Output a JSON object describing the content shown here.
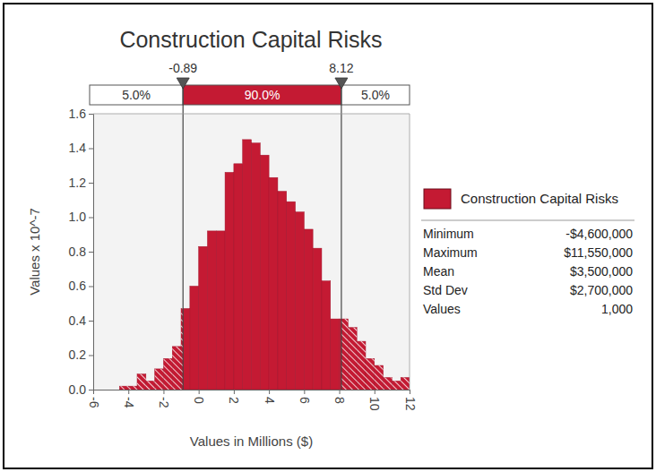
{
  "chart_data": {
    "type": "histogram",
    "title": "Construction Capital Risks",
    "name": "Construction Capital Risks",
    "color": "#c41a33",
    "x_label": "Values in Millions ($)",
    "y_label": "Values x 10^-7",
    "bins": [
      -4.5,
      -4,
      -3.5,
      -3,
      -2.5,
      -2,
      -1.5,
      -1,
      -0.5,
      0,
      0.5,
      1,
      1.5,
      2,
      2.5,
      3,
      3.5,
      4,
      4.5,
      5,
      5.5,
      6,
      6.5,
      7,
      7.5,
      8,
      8.5,
      9,
      9.5,
      10,
      10.5,
      11,
      11.5,
      12
    ],
    "counts": [
      0.02,
      0.02,
      0.09,
      0.05,
      0.12,
      0.18,
      0.25,
      0.47,
      0.6,
      0.83,
      0.92,
      0.92,
      1.26,
      1.31,
      1.45,
      1.43,
      1.36,
      1.23,
      1.15,
      1.09,
      1.03,
      0.93,
      0.82,
      0.63,
      0.41,
      0.41,
      0.36,
      0.28,
      0.18,
      0.14,
      0.07,
      0.05,
      0.07
    ],
    "xlim": [
      -6,
      12
    ],
    "xticks": [
      -6,
      -4,
      -2,
      0,
      2,
      4,
      6,
      8,
      10,
      12
    ],
    "ylim": [
      0,
      1.6
    ],
    "yticks": [
      {
        "value": 0,
        "label": "0.0"
      },
      {
        "value": 0.2,
        "label": "0.2"
      },
      {
        "value": 0.4,
        "label": "0.4"
      },
      {
        "value": 0.6,
        "label": "0.6"
      },
      {
        "value": 0.8,
        "label": "0.8"
      },
      {
        "value": 1,
        "label": "1.0"
      },
      {
        "value": 1.2,
        "label": "1.2"
      },
      {
        "value": 1.4,
        "label": "1.4"
      },
      {
        "value": 1.6,
        "label": "1.6"
      }
    ],
    "percentiles": [
      -0.89,
      8.12
    ],
    "band_labels": [
      {
        "value": 5,
        "label": "5.0%"
      },
      {
        "value": 90,
        "label": "90.0%"
      },
      {
        "value": 5,
        "label": "5.0%"
      }
    ],
    "stats": [
      {
        "name": "Minimum",
        "value": -4600000,
        "label": "-$4,600,000"
      },
      {
        "name": "Maximum",
        "value": 11550000,
        "label": "$11,550,000"
      },
      {
        "name": "Mean",
        "value": 3500000,
        "label": "$3,500,000"
      },
      {
        "name": "Std Dev",
        "value": 2700000,
        "label": "$2,700,000"
      },
      {
        "name": "Values",
        "value": 1000,
        "label": "1,000"
      }
    ],
    "legend": "right",
    "grid": false
  }
}
